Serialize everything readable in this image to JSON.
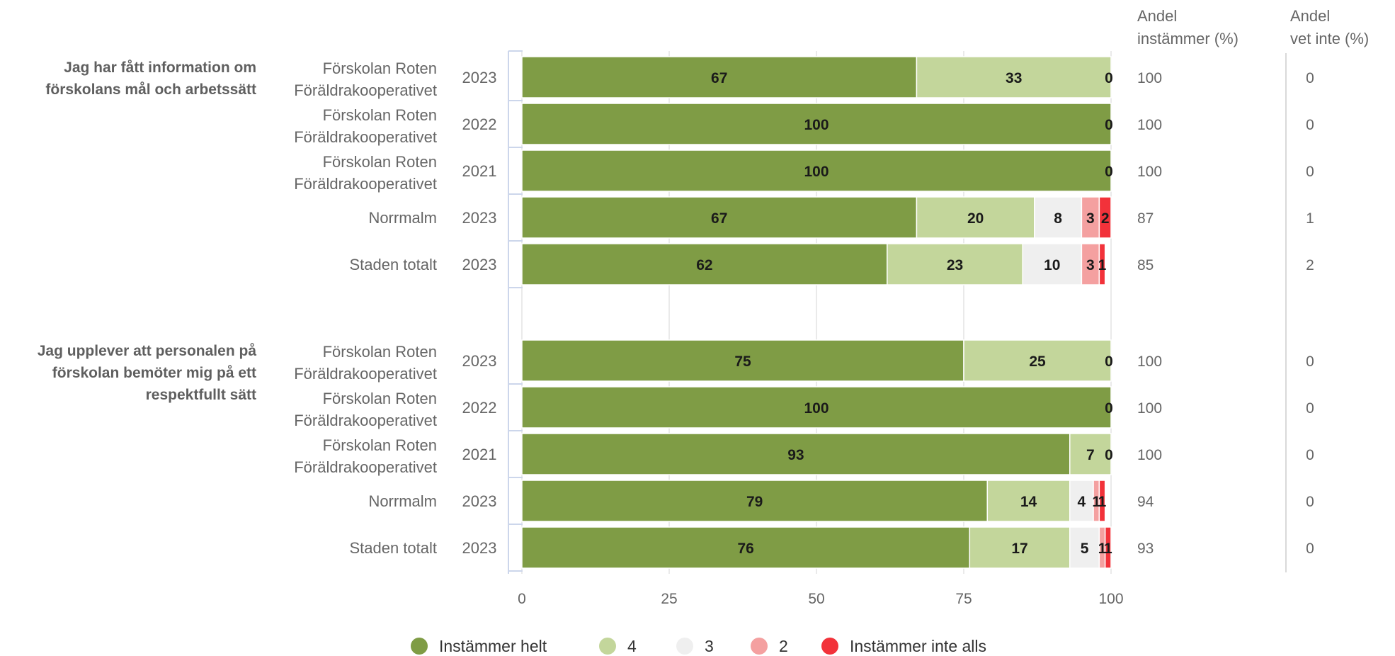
{
  "chart_data": {
    "type": "bar",
    "orientation": "horizontal",
    "stacked": true,
    "xlim": [
      0,
      100
    ],
    "xticks": [
      0,
      25,
      50,
      75,
      100
    ],
    "grid": true,
    "legend_position": "bottom",
    "column_headers": {
      "agree": [
        "Andel",
        "instämmer (%)"
      ],
      "dont_know": [
        "Andel",
        "vet inte (%)"
      ]
    },
    "series": [
      {
        "name": "Instämmer helt",
        "color": "#7f9c45"
      },
      {
        "name": "4",
        "color": "#c3d69b"
      },
      {
        "name": "3",
        "color": "#efefef"
      },
      {
        "name": "2",
        "color": "#f4a0a0"
      },
      {
        "name": "Instämmer inte alls",
        "color": "#f2323a"
      }
    ],
    "groups": [
      {
        "question": [
          "Jag har fått information om",
          "förskolans mål och arbetssätt"
        ],
        "rows": [
          {
            "unit": [
              "Förskolan Roten",
              "Föräldrakooperativet"
            ],
            "year": "2023",
            "values": [
              67,
              33,
              0,
              0,
              0
            ],
            "labels": [
              "67",
              "33",
              "",
              "",
              "0"
            ],
            "agree": "100",
            "dont_know": "0"
          },
          {
            "unit": [
              "Förskolan Roten",
              "Föräldrakooperativet"
            ],
            "year": "2022",
            "values": [
              100,
              0,
              0,
              0,
              0
            ],
            "labels": [
              "100",
              "",
              "",
              "",
              "0"
            ],
            "agree": "100",
            "dont_know": "0"
          },
          {
            "unit": [
              "Förskolan Roten",
              "Föräldrakooperativet"
            ],
            "year": "2021",
            "values": [
              100,
              0,
              0,
              0,
              0
            ],
            "labels": [
              "100",
              "",
              "",
              "",
              "0"
            ],
            "agree": "100",
            "dont_know": "0"
          },
          {
            "unit": [
              "Norrmalm"
            ],
            "year": "2023",
            "values": [
              67,
              20,
              8,
              3,
              2
            ],
            "labels": [
              "67",
              "20",
              "8",
              "3",
              "2"
            ],
            "agree": "87",
            "dont_know": "1"
          },
          {
            "unit": [
              "Staden totalt"
            ],
            "year": "2023",
            "values": [
              62,
              23,
              10,
              3,
              1
            ],
            "labels": [
              "62",
              "23",
              "10",
              "3",
              "1"
            ],
            "agree": "85",
            "dont_know": "2"
          }
        ]
      },
      {
        "question": [
          "Jag upplever att personalen på",
          "förskolan bemöter mig på ett",
          "respektfullt sätt"
        ],
        "rows": [
          {
            "unit": [
              "Förskolan Roten",
              "Föräldrakooperativet"
            ],
            "year": "2023",
            "values": [
              75,
              25,
              0,
              0,
              0
            ],
            "labels": [
              "75",
              "25",
              "",
              "",
              "0"
            ],
            "agree": "100",
            "dont_know": "0"
          },
          {
            "unit": [
              "Förskolan Roten",
              "Föräldrakooperativet"
            ],
            "year": "2022",
            "values": [
              100,
              0,
              0,
              0,
              0
            ],
            "labels": [
              "100",
              "",
              "",
              "",
              "0"
            ],
            "agree": "100",
            "dont_know": "0"
          },
          {
            "unit": [
              "Förskolan Roten",
              "Föräldrakooperativet"
            ],
            "year": "2021",
            "values": [
              93,
              7,
              0,
              0,
              0
            ],
            "labels": [
              "93",
              "7",
              "",
              "",
              "0"
            ],
            "agree": "100",
            "dont_know": "0"
          },
          {
            "unit": [
              "Norrmalm"
            ],
            "year": "2023",
            "values": [
              79,
              14,
              4,
              1,
              1
            ],
            "labels": [
              "79",
              "14",
              "4",
              "1",
              "1"
            ],
            "agree": "94",
            "dont_know": "0"
          },
          {
            "unit": [
              "Staden totalt"
            ],
            "year": "2023",
            "values": [
              76,
              17,
              5,
              1,
              1
            ],
            "labels": [
              "76",
              "17",
              "5",
              "1",
              "1"
            ],
            "agree": "93",
            "dont_know": "0"
          }
        ]
      }
    ]
  }
}
